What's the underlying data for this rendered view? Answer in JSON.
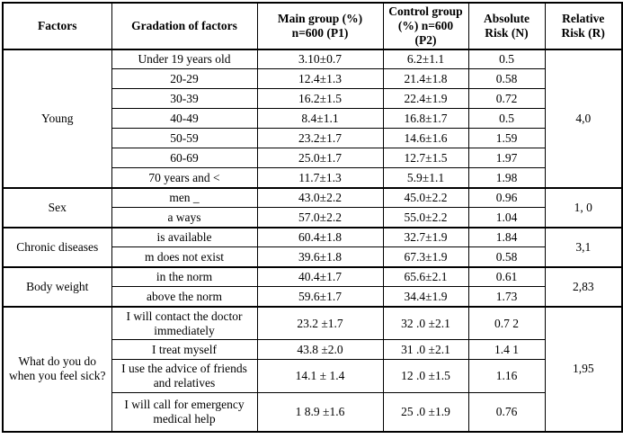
{
  "table": {
    "columns": [
      "Factors",
      "Gradation of factors",
      "Main group (%) n=600 (P1)",
      "Control group (%) n=600 (P2)",
      "Absolute Risk (N)",
      "Relative Risk (R)"
    ],
    "groups": [
      {
        "factor": "Young",
        "relative_risk": "4,0",
        "rows": [
          {
            "gradation": "Under 19 years old",
            "main": "3.10±0.7",
            "control": "6.2±1.1",
            "absolute_risk": "0.5"
          },
          {
            "gradation": "20-29",
            "main": "12.4±1.3",
            "control": "21.4±1.8",
            "absolute_risk": "0.58"
          },
          {
            "gradation": "30-39",
            "main": "16.2±1.5",
            "control": "22.4±1.9",
            "absolute_risk": "0.72"
          },
          {
            "gradation": "40-49",
            "main": "8.4±1.1",
            "control": "16.8±1.7",
            "absolute_risk": "0.5"
          },
          {
            "gradation": "50-59",
            "main": "23.2±1.7",
            "control": "14.6±1.6",
            "absolute_risk": "1.59"
          },
          {
            "gradation": "60-69",
            "main": "25.0±1.7",
            "control": "12.7±1.5",
            "absolute_risk": "1.97"
          },
          {
            "gradation": "70 years and <",
            "main": "11.7±1.3",
            "control": "5.9±1.1",
            "absolute_risk": "1.98"
          }
        ]
      },
      {
        "factor": "Sex",
        "relative_risk": "1, 0",
        "rows": [
          {
            "gradation": "men _",
            "main": "43.0±2.2",
            "control": "45.0±2.2",
            "absolute_risk": "0.96"
          },
          {
            "gradation": "a ways",
            "main": "57.0±2.2",
            "control": "55.0±2.2",
            "absolute_risk": "1.04"
          }
        ]
      },
      {
        "factor": "Chronic diseases",
        "relative_risk": "3,1",
        "rows": [
          {
            "gradation": "is available",
            "main": "60.4±1.8",
            "control": "32.7±1.9",
            "absolute_risk": "1.84"
          },
          {
            "gradation": "m does not exist",
            "main": "39.6±1.8",
            "control": "67.3±1.9",
            "absolute_risk": "0.58"
          }
        ]
      },
      {
        "factor": "Body weight",
        "relative_risk": "2,83",
        "rows": [
          {
            "gradation": "in the norm",
            "main": "40.4±1.7",
            "control": "65.6±2.1",
            "absolute_risk": "0.61"
          },
          {
            "gradation": "above the norm",
            "main": "59.6±1.7",
            "control": "34.4±1.9",
            "absolute_risk": "1.73"
          }
        ]
      },
      {
        "factor": "What do you do when you feel sick?",
        "relative_risk": "1,95",
        "rows": [
          {
            "gradation": "I will contact the doctor immediately",
            "main": "23.2 ±1.7",
            "control": "32 .0 ±2.1",
            "absolute_risk": "0.7 2"
          },
          {
            "gradation": "I treat myself",
            "main": "43.8 ±2.0",
            "control": "31 .0 ±2.1",
            "absolute_risk": "1.4 1"
          },
          {
            "gradation": "I use the advice of friends and relatives",
            "main": "14.1 ± 1.4",
            "control": "12 .0 ±1.5",
            "absolute_risk": "1.16"
          },
          {
            "gradation": "I will call for emergency medical help",
            "main": "1 8.9 ±1.6",
            "control": "25 .0 ±1.9",
            "absolute_risk": "0.76"
          }
        ]
      }
    ]
  }
}
